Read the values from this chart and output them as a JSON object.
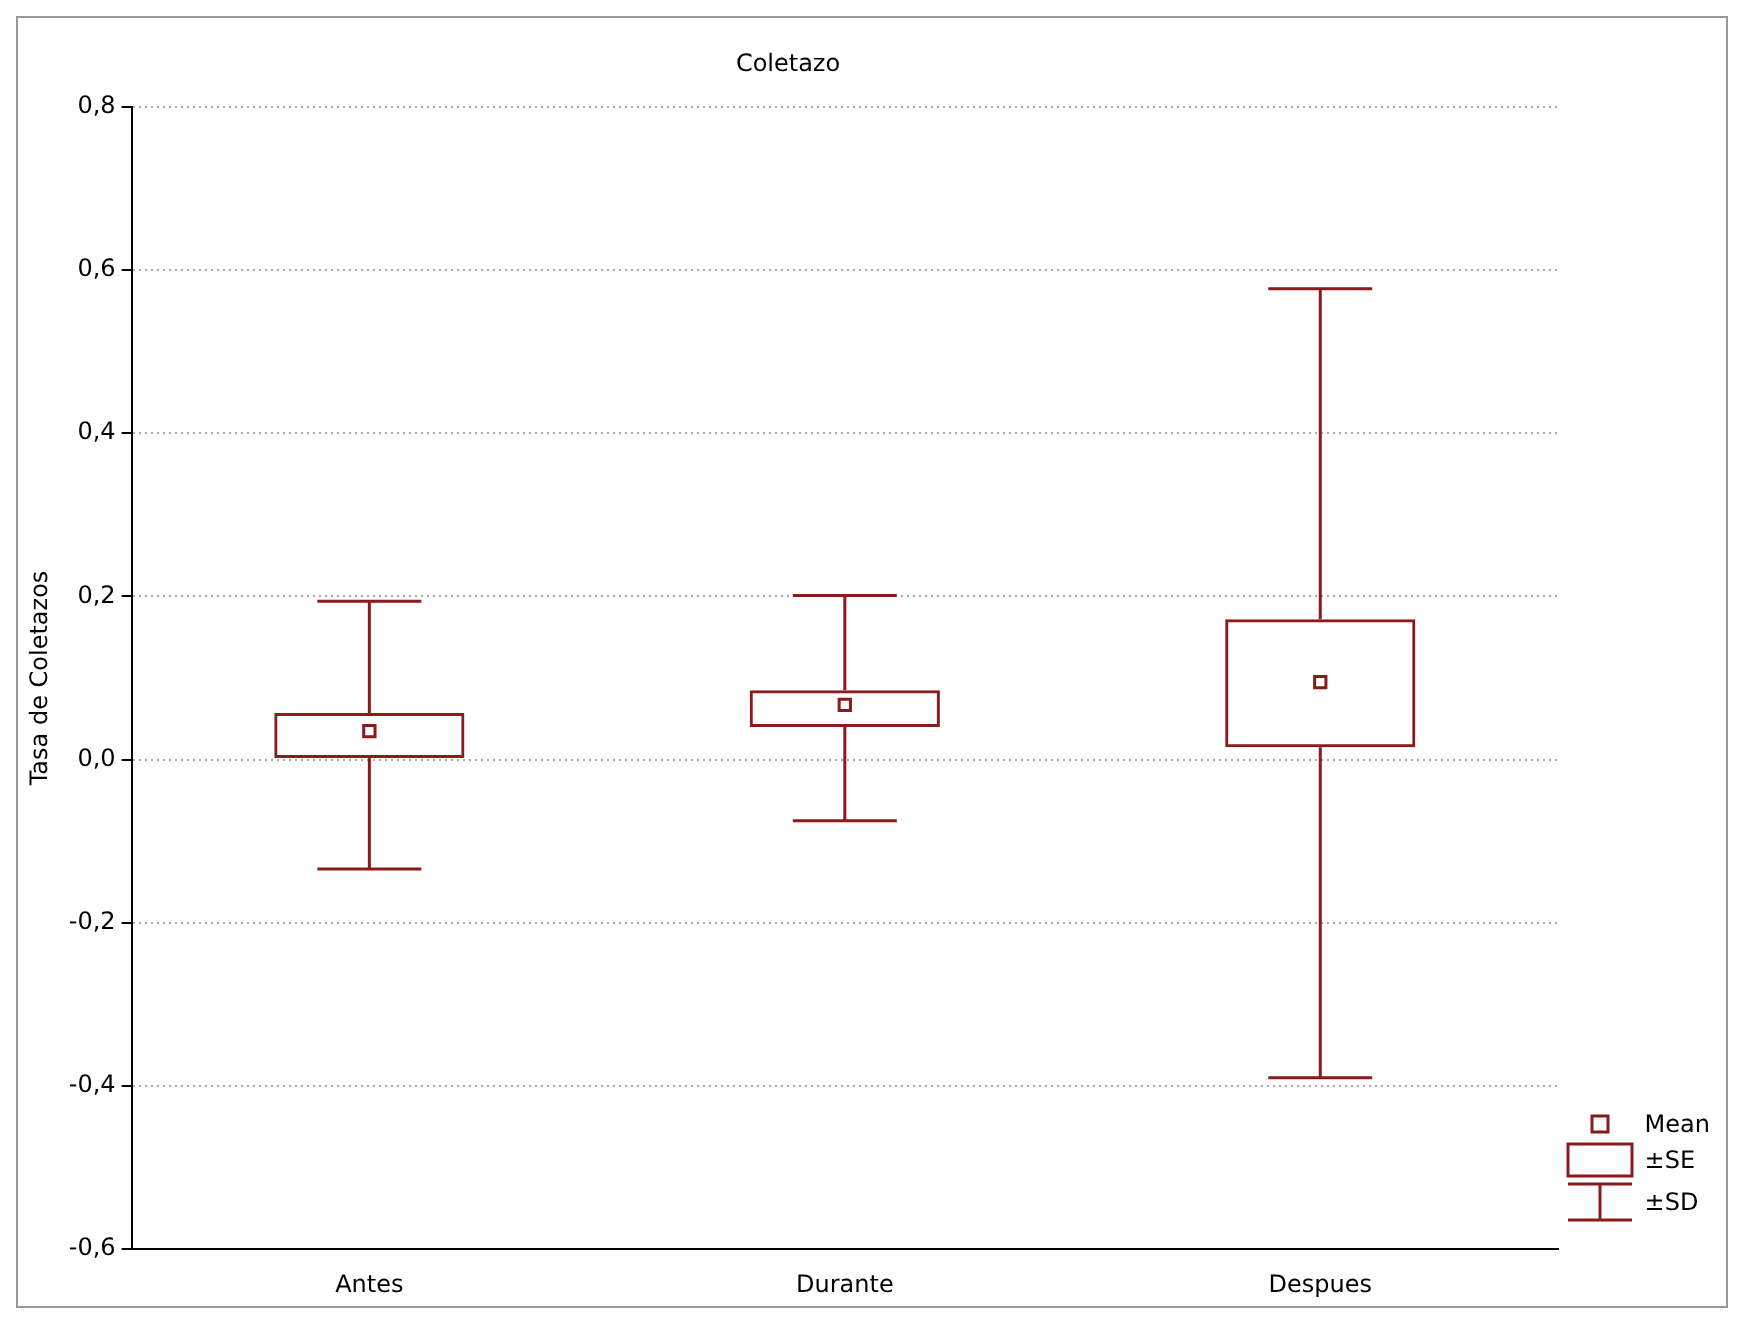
{
  "chart_data": {
    "type": "box",
    "title": "Coletazo",
    "ylabel": "Tasa de Coletazos",
    "categories": [
      "Antes",
      "Durante",
      "Despues"
    ],
    "color": "#8b1a1a",
    "boxes": [
      {
        "low": -0.134,
        "q1": 0.002,
        "median": 0.035,
        "q3": 0.057,
        "high": 0.194
      },
      {
        "low": -0.075,
        "q1": 0.04,
        "median": 0.067,
        "q3": 0.085,
        "high": 0.201
      },
      {
        "low": -0.39,
        "q1": 0.015,
        "median": 0.095,
        "q3": 0.172,
        "high": 0.577
      }
    ],
    "ylim": [
      -0.6,
      0.8
    ],
    "yticks": [
      {
        "value": -0.6,
        "label": "-0,6"
      },
      {
        "value": -0.4,
        "label": "-0,4"
      },
      {
        "value": -0.2,
        "label": "-0,2"
      },
      {
        "value": 0,
        "label": "0,0"
      },
      {
        "value": 0.2,
        "label": "0,2"
      },
      {
        "value": 0.4,
        "label": "0,4"
      },
      {
        "value": 0.6,
        "label": "0,6"
      },
      {
        "value": 0.8,
        "label": "0,8"
      }
    ],
    "grid": "y",
    "marker": "square",
    "annotations": [
      "Mean",
      "±SE",
      "±SD"
    ]
  }
}
